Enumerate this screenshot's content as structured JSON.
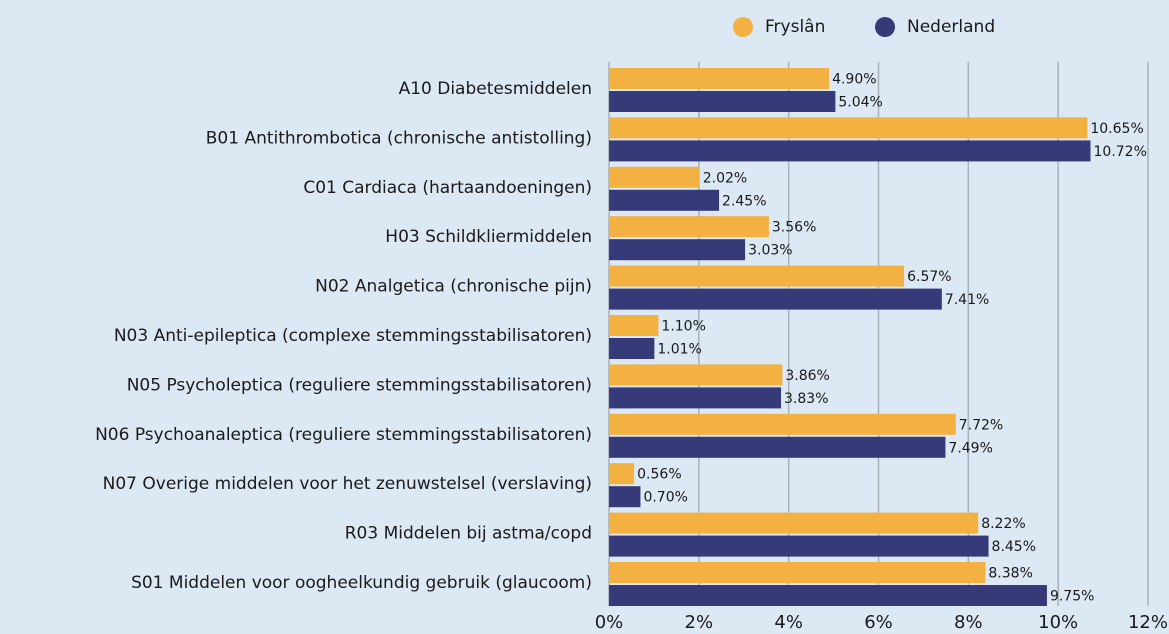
{
  "chart_data": {
    "type": "barh",
    "categories": [
      "A10 Diabetesmiddelen",
      "B01 Antithrombotica (chronische antistolling)",
      "C01 Cardiaca (hartaandoeningen)",
      "H03 Schildkliermiddelen",
      "N02 Analgetica (chronische pijn)",
      "N03 Anti-epileptica (complexe stemmingsstabilisatoren)",
      "N05 Psycholeptica (reguliere stemmingsstabilisatoren)",
      "N06 Psychoanaleptica (reguliere stemmingsstabilisatoren)",
      "N07 Overige middelen voor het zenuwstelsel (verslaving)",
      "R03 Middelen bij astma/copd",
      "S01 Middelen voor oogheelkundig gebruik (glaucoom)"
    ],
    "series": [
      {
        "name": "Fryslân",
        "color": "#f2b141",
        "values": [
          4.9,
          10.65,
          2.02,
          3.56,
          6.57,
          1.1,
          3.86,
          7.72,
          0.56,
          8.22,
          8.38
        ],
        "value_labels": [
          "4.90%",
          "10.65%",
          "2.02%",
          "3.56%",
          "6.57%",
          "1.10%",
          "3.86%",
          "7.72%",
          "0.56%",
          "8.22%",
          "8.38%"
        ]
      },
      {
        "name": "Nederland",
        "color": "#363a78",
        "values": [
          5.04,
          10.72,
          2.45,
          3.03,
          7.41,
          1.01,
          3.83,
          7.49,
          0.7,
          8.45,
          9.75
        ],
        "value_labels": [
          "5.04%",
          "10.72%",
          "2.45%",
          "3.03%",
          "7.41%",
          "1.01%",
          "3.83%",
          "7.49%",
          "0.70%",
          "8.45%",
          "9.75%"
        ]
      }
    ],
    "xlim": [
      0,
      12
    ],
    "xticks": [
      {
        "value": 0,
        "label": "0%"
      },
      {
        "value": 2,
        "label": "2%"
      },
      {
        "value": 4,
        "label": "4%"
      },
      {
        "value": 6,
        "label": "6%"
      },
      {
        "value": 8,
        "label": "8%"
      },
      {
        "value": 10,
        "label": "10%"
      },
      {
        "value": 12,
        "label": "12%"
      }
    ],
    "grid": true,
    "legend": "top"
  }
}
